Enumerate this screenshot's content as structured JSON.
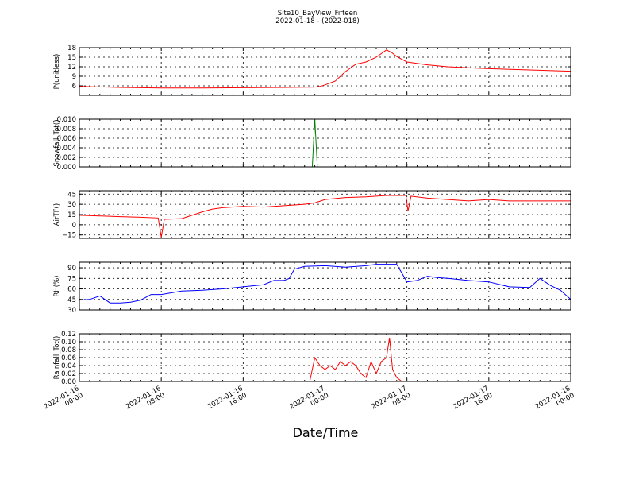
{
  "title": "Site10_BayView_Fifteen",
  "subtitle": "2022-01-18 - (2022-018)",
  "xlabel": "Date/Time",
  "x_ticks": [
    {
      "line1": "2022-01-16",
      "line2": "00:00",
      "hours": 0
    },
    {
      "line1": "2022-01-16",
      "line2": "08:00",
      "hours": 8
    },
    {
      "line1": "2022-01-16",
      "line2": "16:00",
      "hours": 16
    },
    {
      "line1": "2022-01-17",
      "line2": "00:00",
      "hours": 24
    },
    {
      "line1": "2022-01-17",
      "line2": "08:00",
      "hours": 32
    },
    {
      "line1": "2022-01-17",
      "line2": "16:00",
      "hours": 40
    },
    {
      "line1": "2022-01-18",
      "line2": "00:00",
      "hours": 48
    }
  ],
  "chart_data": [
    {
      "type": "line",
      "ylabel": "P(unitless)",
      "ylim": [
        3,
        18
      ],
      "yticks": [
        6,
        9,
        12,
        15,
        18
      ],
      "ytick_labels": [
        "6",
        "9",
        "12",
        "15",
        "18"
      ],
      "color": "#ff0000",
      "grid": true,
      "x": [
        0,
        4,
        8,
        12,
        16,
        20,
        23,
        23.5,
        24,
        25,
        26,
        27,
        28,
        29,
        30,
        30.5,
        31,
        32,
        34,
        36,
        38,
        40,
        44,
        48
      ],
      "values": [
        5.8,
        5.5,
        5.3,
        5.3,
        5.4,
        5.5,
        5.6,
        5.8,
        6.3,
        7.5,
        10.5,
        12.8,
        13.5,
        15.0,
        17.3,
        16.5,
        15.2,
        13.5,
        12.6,
        12.0,
        11.7,
        11.4,
        11.0,
        10.6
      ]
    },
    {
      "type": "line",
      "ylabel": "Snowfall_Tot()",
      "ylim": [
        0,
        0.01
      ],
      "yticks": [
        0,
        0.002,
        0.004,
        0.006,
        0.008,
        0.01
      ],
      "ytick_labels": [
        "0.000",
        "0.002",
        "0.004",
        "0.006",
        "0.008",
        "0.010"
      ],
      "color": "#008000",
      "grid": true,
      "x": [
        0,
        22.5,
        22.75,
        23.0,
        23.25,
        48
      ],
      "values": [
        0,
        0,
        0,
        0.01,
        0,
        0
      ]
    },
    {
      "type": "line",
      "ylabel": "AirTF()",
      "ylim": [
        -20,
        50
      ],
      "yticks": [
        -15,
        0,
        15,
        30,
        45
      ],
      "ytick_labels": [
        "−15",
        "0",
        "15",
        "30",
        "45"
      ],
      "color": "#ff0000",
      "grid": true,
      "x": [
        0,
        2,
        4,
        6,
        7.7,
        8.0,
        8.3,
        10,
        11,
        12,
        13,
        14,
        16,
        18,
        20,
        22,
        23,
        24,
        26,
        28,
        30,
        31.9,
        32.1,
        32.4,
        34,
        36,
        38,
        40,
        42,
        44,
        46,
        48
      ],
      "values": [
        14,
        13,
        12,
        11,
        10,
        -18,
        8,
        9,
        14,
        19,
        23,
        25,
        27,
        26,
        28,
        30,
        32,
        37,
        40,
        41,
        43,
        43,
        20,
        42,
        39,
        37,
        35,
        37,
        35,
        35,
        35,
        35
      ]
    },
    {
      "type": "line",
      "ylabel": "RH(%)",
      "ylim": [
        30,
        98
      ],
      "yticks": [
        30,
        45,
        60,
        75,
        90
      ],
      "ytick_labels": [
        "30",
        "45",
        "60",
        "75",
        "90"
      ],
      "color": "#0000ff",
      "grid": true,
      "x": [
        0,
        1,
        2,
        3,
        4,
        5,
        6,
        7,
        8,
        10,
        12,
        14,
        16,
        18,
        19,
        20,
        20.5,
        21,
        22,
        24,
        26,
        28,
        29,
        30,
        31,
        32,
        33,
        34,
        35,
        36,
        38,
        40,
        42,
        44,
        45,
        46,
        47,
        48
      ],
      "values": [
        44,
        45,
        50,
        40,
        40,
        41,
        44,
        52,
        52,
        57,
        58,
        60,
        63,
        66,
        72,
        72,
        75,
        88,
        92,
        93,
        91,
        93,
        95,
        95,
        95,
        70,
        72,
        78,
        76,
        75,
        72,
        70,
        63,
        62,
        75,
        65,
        58,
        45
      ]
    },
    {
      "type": "line",
      "ylabel": "Rainfall_Tot()",
      "ylim": [
        0,
        0.12
      ],
      "yticks": [
        0,
        0.02,
        0.04,
        0.06,
        0.08,
        0.1,
        0.12
      ],
      "ytick_labels": [
        "0.00",
        "0.02",
        "0.04",
        "0.06",
        "0.08",
        "0.10",
        "0.12"
      ],
      "color": "#ff0000",
      "grid": true,
      "x": [
        0,
        22.5,
        23.0,
        23.5,
        24.0,
        24.5,
        25.0,
        25.5,
        26.0,
        26.5,
        27.0,
        27.5,
        28.0,
        28.5,
        29.0,
        29.5,
        30.0,
        30.3,
        30.6,
        31.0,
        31.5,
        48
      ],
      "values": [
        0,
        0,
        0.06,
        0.04,
        0.03,
        0.04,
        0.03,
        0.05,
        0.04,
        0.05,
        0.04,
        0.02,
        0.01,
        0.05,
        0.02,
        0.05,
        0.06,
        0.11,
        0.03,
        0.01,
        0,
        0
      ]
    }
  ]
}
